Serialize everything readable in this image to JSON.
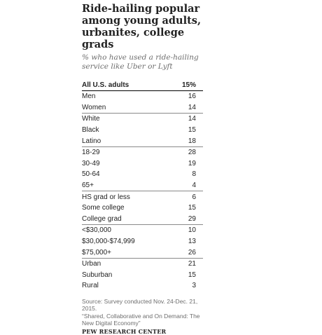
{
  "title": "Ride-hailing popular among young adults, urbanites, college grads",
  "subtitle": "% who have used a ride-hailing service like Uber or Lyft",
  "chart_data": {
    "type": "table",
    "header": {
      "label": "All U.S. adults",
      "value": "15%"
    },
    "groups": [
      {
        "rows": [
          {
            "label": "Men",
            "value": "16"
          },
          {
            "label": "Women",
            "value": "14"
          }
        ]
      },
      {
        "rows": [
          {
            "label": "White",
            "value": "14"
          },
          {
            "label": "Black",
            "value": "15"
          },
          {
            "label": "Latino",
            "value": "18"
          }
        ]
      },
      {
        "rows": [
          {
            "label": "18-29",
            "value": "28"
          },
          {
            "label": "30-49",
            "value": "19"
          },
          {
            "label": "50-64",
            "value": "8"
          },
          {
            "label": "65+",
            "value": "4"
          }
        ]
      },
      {
        "rows": [
          {
            "label": "HS grad or less",
            "value": "6"
          },
          {
            "label": "Some college",
            "value": "15"
          },
          {
            "label": "College grad",
            "value": "29"
          }
        ]
      },
      {
        "rows": [
          {
            "label": "<$30,000",
            "value": "10"
          },
          {
            "label": "$30,000-$74,999",
            "value": "13"
          },
          {
            "label": "$75,000+",
            "value": "26"
          }
        ]
      },
      {
        "rows": [
          {
            "label": "Urban",
            "value": "21"
          },
          {
            "label": "Suburban",
            "value": "15"
          },
          {
            "label": "Rural",
            "value": "3"
          }
        ]
      }
    ]
  },
  "source": {
    "line1": "Source: Survey conducted Nov. 24-Dec. 21, 2015.",
    "line2": "“Shared, Collaborative and On Demand: The New Digital Economy”"
  },
  "org": "PEW RESEARCH CENTER"
}
